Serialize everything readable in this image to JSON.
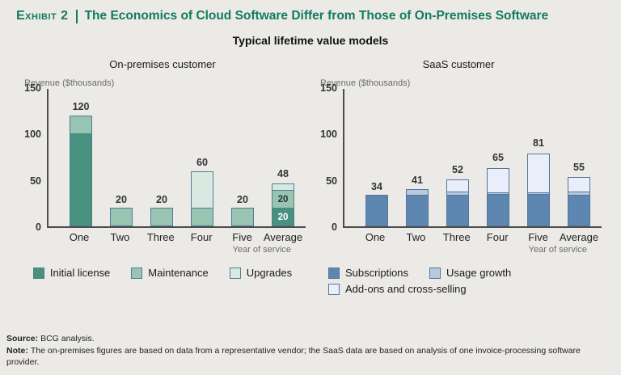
{
  "header": {
    "exhibit_label": "Exhibit 2",
    "title": "The Economics of Cloud Software Differ from Those of On-Premises Software",
    "subtitle": "Typical lifetime value models",
    "accent_color": "#127a60"
  },
  "chart_data": [
    {
      "id": "on_premises",
      "type": "bar",
      "stacked": true,
      "title": "On-premises customer",
      "y_axis_title": "Revenue ($thousands)",
      "x_axis_title": "Year of service",
      "ylim": [
        0,
        150
      ],
      "yticks": [
        150,
        100,
        50,
        0
      ],
      "grid": false,
      "legend_position": "bottom-center",
      "categories": [
        "One",
        "Two",
        "Three",
        "Four",
        "Five",
        "Average"
      ],
      "series": [
        {
          "name": "Initial license",
          "color": "#47917e",
          "values": [
            100,
            0,
            0,
            0,
            0,
            20
          ],
          "inside_labels": [
            "",
            "",
            "",
            "",
            "",
            "20"
          ],
          "inside_label_color": "#ffffff"
        },
        {
          "name": "Maintenance",
          "color": "#99c4b2",
          "values": [
            20,
            20,
            20,
            20,
            20,
            20
          ],
          "inside_labels": [
            "",
            "",
            "",
            "",
            "",
            "20"
          ],
          "inside_label_color": "#22332e"
        },
        {
          "name": "Upgrades",
          "color": "#d9e8e1",
          "values": [
            0,
            0,
            0,
            40,
            0,
            8
          ]
        }
      ],
      "totals": [
        120,
        20,
        20,
        60,
        20,
        48
      ],
      "bar_border_color": "#4d7f93"
    },
    {
      "id": "saas",
      "type": "bar",
      "stacked": true,
      "title": "SaaS customer",
      "y_axis_title": "Revenue ($thousands)",
      "x_axis_title": "Year of service",
      "ylim": [
        0,
        150
      ],
      "yticks": [
        150,
        100,
        50,
        0
      ],
      "grid": false,
      "legend_position": "bottom-left",
      "categories": [
        "One",
        "Two",
        "Three",
        "Four",
        "Five",
        "Average"
      ],
      "series": [
        {
          "name": "Subscriptions",
          "color": "#5d87b0",
          "values": [
            34,
            34,
            34,
            35,
            35,
            34
          ]
        },
        {
          "name": "Usage growth",
          "color": "#b7cade",
          "values": [
            0,
            7,
            4,
            3,
            3,
            4
          ]
        },
        {
          "name": "Add-ons and cross-selling",
          "color": "#e9effa",
          "values": [
            0,
            0,
            14,
            27,
            43,
            17
          ]
        }
      ],
      "totals": [
        34,
        41,
        52,
        65,
        81,
        55
      ],
      "bar_border_color": "#56759b"
    }
  ],
  "footer": {
    "source_label": "Source:",
    "source_text": "BCG analysis.",
    "note_label": "Note:",
    "note_text": "The on-premises figures are based on data from a representative vendor; the SaaS data are based on analysis of one invoice-processing software provider."
  },
  "colors": {
    "background": "#ebeae7",
    "axis": "#4d4d4d",
    "muted_text": "#6b6b6b",
    "value_label": "#333333"
  }
}
